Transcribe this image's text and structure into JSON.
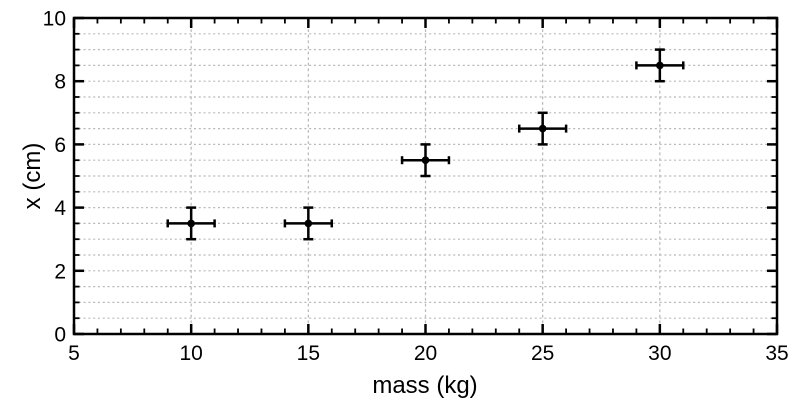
{
  "chart_data": {
    "type": "scatter",
    "title": "",
    "xlabel": "mass (kg)",
    "ylabel": "x (cm)",
    "xlim": [
      5,
      35
    ],
    "ylim": [
      0,
      10
    ],
    "x_major_ticks": [
      5,
      10,
      15,
      20,
      25,
      30,
      35
    ],
    "x_minor_step": 1,
    "y_major_ticks": [
      0,
      2,
      4,
      6,
      8,
      10
    ],
    "y_minor_step": 0.5,
    "grid": {
      "enabled": true,
      "horizontal_step": 0.5,
      "vertical_lines_at": [
        10,
        15,
        20,
        25,
        30
      ],
      "style": "dotted",
      "color": "#b8b8b8"
    },
    "legend_position": "none",
    "points": [
      {
        "x": 10,
        "y": 3.5,
        "xerr": 1,
        "yerr": 0.5
      },
      {
        "x": 15,
        "y": 3.5,
        "xerr": 1,
        "yerr": 0.5
      },
      {
        "x": 20,
        "y": 5.5,
        "xerr": 1,
        "yerr": 0.5
      },
      {
        "x": 25,
        "y": 6.5,
        "xerr": 1,
        "yerr": 0.5
      },
      {
        "x": 30,
        "y": 8.5,
        "xerr": 1,
        "yerr": 0.5
      }
    ],
    "marker": "circle",
    "marker_color": "#000000"
  },
  "colors": {
    "axis": "#000000",
    "grid": "#b8b8b8",
    "background": "#ffffff"
  }
}
